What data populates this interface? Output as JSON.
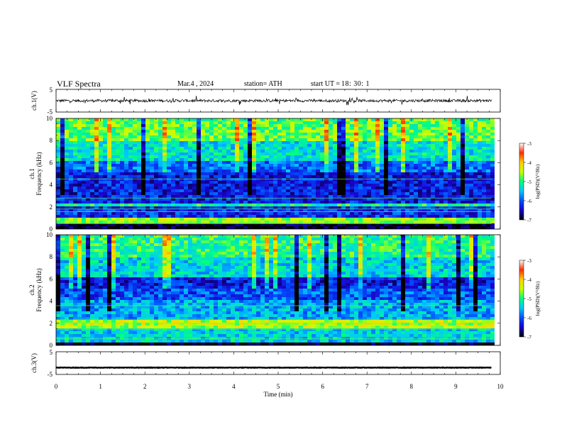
{
  "header": {
    "title": "VLF  Spectra",
    "date": "Mar.4  , 2024",
    "station": "station= ATH",
    "start_label": "start  UT  =",
    "start_time": "18: 30: 1"
  },
  "chart_data": [
    {
      "type": "line",
      "panel": "ch1-waveform",
      "ylabel": "ch.1(V)",
      "ylim": [
        -5,
        5
      ],
      "yticks": [
        "5",
        "-5"
      ],
      "xlim": [
        0,
        10
      ],
      "baseline": 0,
      "noise_amplitude": 1.2,
      "color": "#000000"
    },
    {
      "type": "heatmap",
      "panel": "ch1-spectrogram",
      "ylabel_line1": "ch.1",
      "ylabel_line2": "Frequency  (kHz)",
      "ylim": [
        0,
        10
      ],
      "yticks": [
        "0",
        "2",
        "4",
        "6",
        "8",
        "10"
      ],
      "xlim": [
        0,
        9.8
      ],
      "colorbar": {
        "label": "log(PSD)(V²/Hz)",
        "range": [
          -7,
          -3
        ],
        "ticks": [
          "-3",
          "-4",
          "-5",
          "-6",
          "-7"
        ],
        "stops": [
          "#000000",
          "#1a00c8",
          "#0050ff",
          "#00c8ff",
          "#00ff80",
          "#c8ff00",
          "#ffd200",
          "#ff3000",
          "#ffffff"
        ]
      },
      "bands": [
        {
          "f": [
            0.0,
            0.6
          ],
          "level": -7.0
        },
        {
          "f": [
            0.6,
            1.0
          ],
          "level": -4.6
        },
        {
          "f": [
            1.0,
            2.0
          ],
          "level": -6.2
        },
        {
          "f": [
            2.0,
            2.4
          ],
          "level": -5.1
        },
        {
          "f": [
            2.4,
            5.0
          ],
          "level": -6.3
        },
        {
          "f": [
            5.0,
            6.2
          ],
          "level": -5.9
        },
        {
          "f": [
            6.2,
            8.0
          ],
          "level": -5.3
        },
        {
          "f": [
            8.0,
            10.0
          ],
          "level": -4.8
        }
      ]
    },
    {
      "type": "heatmap",
      "panel": "ch2-spectrogram",
      "ylabel_line1": "ch.2",
      "ylabel_line2": "Frequency  (kHz)",
      "ylim": [
        0,
        10
      ],
      "yticks": [
        "0",
        "2",
        "4",
        "6",
        "8",
        "10"
      ],
      "xlim": [
        0,
        9.8
      ],
      "colorbar": {
        "label": "log(PSD)(V²/Hz)",
        "range": [
          -7,
          -3
        ],
        "ticks": [
          "-3",
          "-4",
          "-5",
          "-6",
          "-7"
        ],
        "stops": [
          "#000000",
          "#1a00c8",
          "#0050ff",
          "#00c8ff",
          "#00ff80",
          "#c8ff00",
          "#ffd200",
          "#ff3000",
          "#ffffff"
        ]
      },
      "bands": [
        {
          "f": [
            0.0,
            0.3
          ],
          "level": -7.0
        },
        {
          "f": [
            0.3,
            1.6
          ],
          "level": -5.4
        },
        {
          "f": [
            1.6,
            2.2
          ],
          "level": -4.5
        },
        {
          "f": [
            2.2,
            4.0
          ],
          "level": -5.6
        },
        {
          "f": [
            4.0,
            5.0
          ],
          "level": -6.0
        },
        {
          "f": [
            5.0,
            6.2
          ],
          "level": -6.3
        },
        {
          "f": [
            6.2,
            8.0
          ],
          "level": -5.4
        },
        {
          "f": [
            8.0,
            10.0
          ],
          "level": -5.0
        }
      ]
    },
    {
      "type": "line",
      "panel": "ch3-waveform",
      "ylabel": "ch.3(V)",
      "ylim": [
        -5,
        5
      ],
      "yticks": [
        "5",
        "-5"
      ],
      "xlim": [
        0,
        10
      ],
      "baseline": -2,
      "noise_amplitude": 0.2,
      "color": "#000000"
    }
  ],
  "xaxis": {
    "label": "Time  (min)",
    "ticks": [
      "0",
      "1",
      "2",
      "3",
      "4",
      "5",
      "6",
      "7",
      "8",
      "9",
      "10"
    ]
  }
}
